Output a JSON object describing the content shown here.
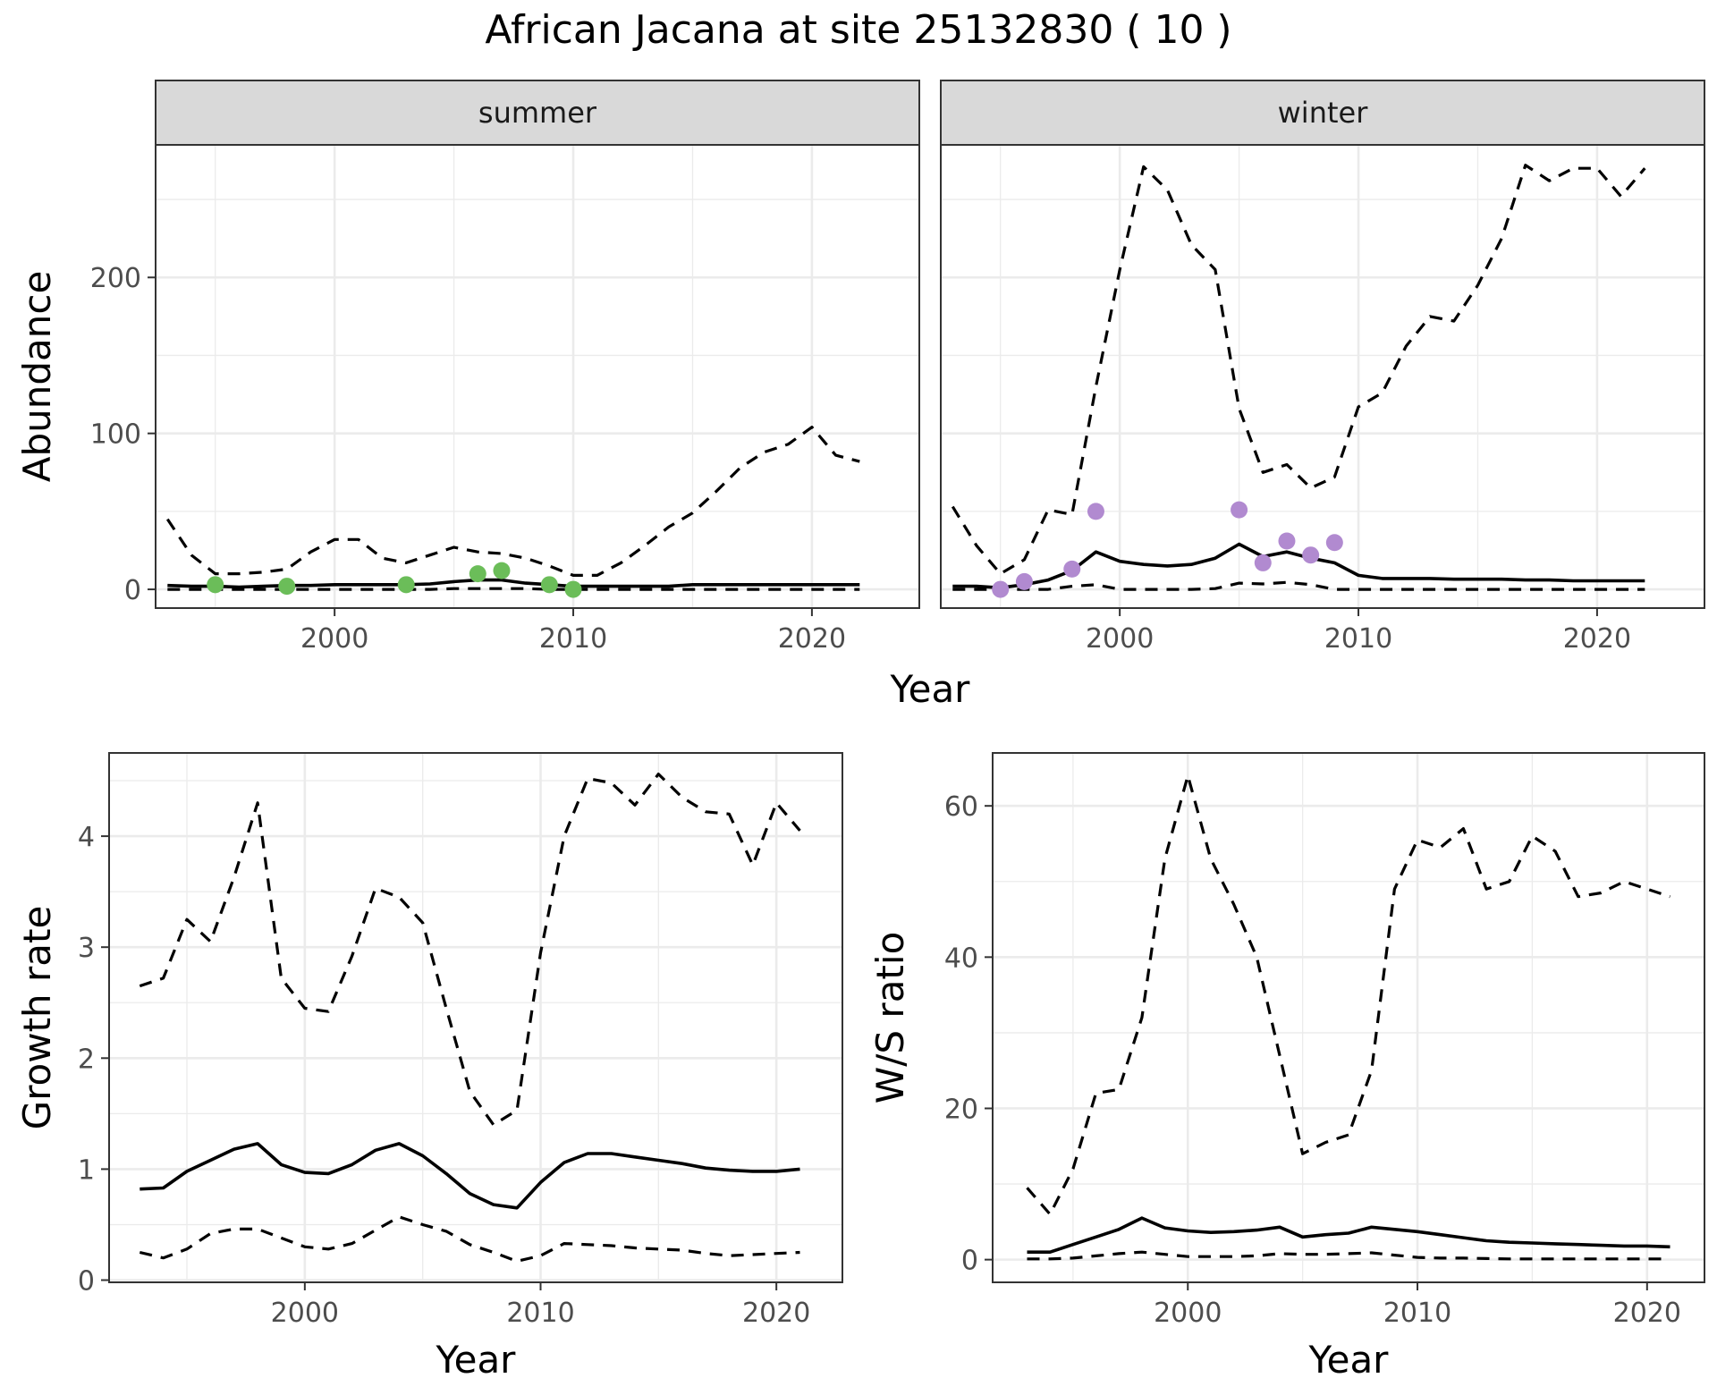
{
  "title": "African Jacana at site 25132830 ( 10 )",
  "colors": {
    "summer_points": "#6bbd59",
    "winter_points": "#b18ad0"
  },
  "abundance_panel": {
    "ylabel": "Abundance",
    "xlabel": "Year",
    "x_ticks": [
      "2000",
      "2010",
      "2020"
    ],
    "y_ticks": [
      "0",
      "100",
      "200"
    ]
  },
  "growth_panel": {
    "ylabel": "Growth rate",
    "xlabel": "Year",
    "x_ticks": [
      "2000",
      "2010",
      "2020"
    ],
    "y_ticks": [
      "0",
      "1",
      "2",
      "3",
      "4"
    ]
  },
  "ratio_panel": {
    "ylabel": "W/S ratio",
    "xlabel": "Year",
    "x_ticks": [
      "2000",
      "2010",
      "2020"
    ],
    "y_ticks": [
      "0",
      "20",
      "40",
      "60"
    ]
  },
  "chart_data": [
    {
      "type": "line",
      "facet": "summer",
      "xlim": [
        1992.5,
        2024.5
      ],
      "ylim": [
        -12,
        285
      ],
      "x": [
        1993,
        1994,
        1995,
        1996,
        1997,
        1998,
        1999,
        2000,
        2001,
        2002,
        2003,
        2004,
        2005,
        2006,
        2007,
        2008,
        2009,
        2010,
        2011,
        2012,
        2013,
        2014,
        2015,
        2016,
        2017,
        2018,
        2019,
        2020,
        2021,
        2022
      ],
      "series": [
        {
          "role": "upper",
          "values": [
            45,
            22,
            10,
            10,
            11,
            13,
            24,
            32,
            32,
            20,
            17,
            22,
            27,
            24,
            23,
            20,
            15,
            9,
            9,
            17,
            28,
            40,
            49,
            63,
            78,
            88,
            93,
            104,
            86,
            82
          ]
        },
        {
          "role": "mean",
          "values": [
            2.5,
            2,
            2,
            1.5,
            2,
            2.5,
            2.5,
            3,
            3,
            3,
            3,
            3.5,
            5,
            6,
            6,
            4,
            3,
            2,
            2,
            2,
            2,
            2,
            3,
            3,
            3,
            3,
            3,
            3,
            3,
            3
          ]
        },
        {
          "role": "lower",
          "values": [
            0,
            0,
            0,
            0,
            0,
            0,
            0,
            0,
            0,
            0,
            0,
            0,
            0.5,
            0.5,
            0.5,
            0.5,
            0,
            0,
            0,
            0,
            0,
            0,
            0,
            0,
            0,
            0,
            0,
            0,
            0,
            0
          ]
        }
      ],
      "points": {
        "x": [
          1995,
          1998,
          2003,
          2006,
          2007,
          2009,
          2010
        ],
        "y": [
          3,
          2,
          3,
          10,
          12,
          3,
          0
        ]
      }
    },
    {
      "type": "line",
      "facet": "winter",
      "xlim": [
        1992.5,
        2024.5
      ],
      "ylim": [
        -12,
        285
      ],
      "x": [
        1993,
        1994,
        1995,
        1996,
        1997,
        1998,
        1999,
        2000,
        2001,
        2002,
        2003,
        2004,
        2005,
        2006,
        2007,
        2008,
        2009,
        2010,
        2011,
        2012,
        2013,
        2014,
        2015,
        2016,
        2017,
        2018,
        2019,
        2020,
        2021,
        2022
      ],
      "series": [
        {
          "role": "upper",
          "values": [
            53,
            28,
            10,
            19,
            51,
            48,
            130,
            205,
            271,
            256,
            221,
            205,
            116,
            75,
            80,
            65,
            72,
            117,
            126,
            156,
            175,
            172,
            195,
            225,
            272,
            262,
            270,
            270,
            252,
            270
          ]
        },
        {
          "role": "mean",
          "values": [
            2,
            2,
            1,
            3,
            6,
            12,
            24,
            18,
            16,
            15,
            16,
            20,
            29,
            21,
            24,
            20,
            17,
            9,
            7,
            7,
            7,
            6.5,
            6.5,
            6.5,
            6,
            6,
            5.5,
            5.5,
            5.5,
            5.5
          ]
        },
        {
          "role": "lower",
          "values": [
            0,
            0,
            0,
            0,
            0,
            2,
            3,
            0,
            0,
            0,
            0,
            0.5,
            4,
            3.5,
            4.5,
            3,
            0,
            0,
            0,
            0,
            0,
            0,
            0,
            0,
            0,
            0,
            0,
            0,
            0,
            0
          ]
        }
      ],
      "points": {
        "x": [
          1995,
          1996,
          1998,
          1999,
          2005,
          2006,
          2007,
          2008,
          2009
        ],
        "y": [
          0,
          5,
          13,
          50,
          51,
          17,
          31,
          22,
          30
        ]
      }
    },
    {
      "type": "line",
      "xlim": [
        1991.7,
        2022.8
      ],
      "ylim": [
        -0.02,
        4.75
      ],
      "x": [
        1993,
        1994,
        1995,
        1996,
        1997,
        1998,
        1999,
        2000,
        2001,
        2002,
        2003,
        2004,
        2005,
        2006,
        2007,
        2008,
        2009,
        2010,
        2011,
        2012,
        2013,
        2014,
        2015,
        2016,
        2017,
        2018,
        2019,
        2020,
        2021
      ],
      "series": [
        {
          "role": "upper",
          "values": [
            2.65,
            2.72,
            3.25,
            3.05,
            3.63,
            4.3,
            2.72,
            2.45,
            2.42,
            2.92,
            3.53,
            3.45,
            3.22,
            2.45,
            1.7,
            1.4,
            1.53,
            2.95,
            4.0,
            4.52,
            4.48,
            4.28,
            4.56,
            4.35,
            4.22,
            4.2,
            3.74,
            4.3,
            4.05
          ]
        },
        {
          "role": "mean",
          "values": [
            0.82,
            0.83,
            0.98,
            1.08,
            1.18,
            1.23,
            1.04,
            0.97,
            0.96,
            1.04,
            1.17,
            1.23,
            1.12,
            0.96,
            0.78,
            0.68,
            0.65,
            0.88,
            1.06,
            1.14,
            1.14,
            1.11,
            1.08,
            1.05,
            1.01,
            0.99,
            0.98,
            0.98,
            1.0
          ]
        },
        {
          "role": "lower",
          "values": [
            0.25,
            0.2,
            0.28,
            0.42,
            0.46,
            0.46,
            0.38,
            0.3,
            0.28,
            0.33,
            0.45,
            0.57,
            0.5,
            0.44,
            0.32,
            0.25,
            0.17,
            0.22,
            0.33,
            0.32,
            0.31,
            0.29,
            0.28,
            0.27,
            0.24,
            0.22,
            0.23,
            0.24,
            0.25
          ]
        }
      ]
    },
    {
      "type": "line",
      "xlim": [
        1991.5,
        2022.5
      ],
      "ylim": [
        -3,
        67
      ],
      "x": [
        1993,
        1994,
        1995,
        1996,
        1997,
        1998,
        1999,
        2000,
        2001,
        2002,
        2003,
        2004,
        2005,
        2006,
        2007,
        2008,
        2009,
        2010,
        2011,
        2012,
        2013,
        2014,
        2015,
        2016,
        2017,
        2018,
        2019,
        2020,
        2021
      ],
      "series": [
        {
          "role": "upper",
          "values": [
            9.5,
            6,
            12,
            22,
            22.5,
            32,
            53,
            64,
            53,
            47,
            40,
            27,
            14,
            15.5,
            16.5,
            25,
            49,
            55.5,
            54.5,
            57,
            49,
            50,
            56,
            54,
            48,
            48.5,
            50,
            49,
            48
          ]
        },
        {
          "role": "mean",
          "values": [
            1,
            1,
            2,
            3,
            4,
            5.5,
            4.2,
            3.8,
            3.6,
            3.7,
            3.9,
            4.3,
            3,
            3.3,
            3.5,
            4.3,
            4,
            3.7,
            3.3,
            2.9,
            2.5,
            2.3,
            2.2,
            2.1,
            2,
            1.9,
            1.8,
            1.8,
            1.7
          ]
        },
        {
          "role": "lower",
          "values": [
            0.1,
            0.1,
            0.2,
            0.5,
            0.8,
            1,
            0.7,
            0.4,
            0.4,
            0.4,
            0.5,
            0.8,
            0.7,
            0.7,
            0.8,
            0.9,
            0.6,
            0.3,
            0.2,
            0.2,
            0.15,
            0.1,
            0.1,
            0.1,
            0.1,
            0.1,
            0.1,
            0.1,
            0.1
          ]
        }
      ]
    }
  ]
}
